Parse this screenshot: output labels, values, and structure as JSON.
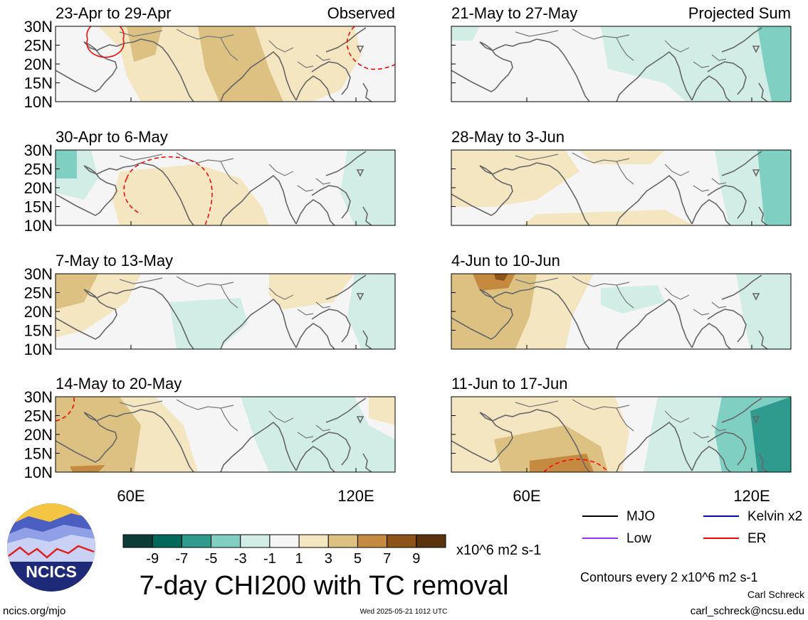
{
  "chart_data": {
    "type": "map",
    "panels": [
      {
        "period": "23-Apr to 29-Apr",
        "tag": "Observed"
      },
      {
        "period": "21-May to 27-May",
        "tag": "Projected Sum"
      },
      {
        "period": "30-Apr to 6-May",
        "tag": ""
      },
      {
        "period": "28-May to 3-Jun",
        "tag": ""
      },
      {
        "period": "7-May to 13-May",
        "tag": ""
      },
      {
        "period": "4-Jun to 10-Jun",
        "tag": ""
      },
      {
        "period": "14-May to 20-May",
        "tag": ""
      },
      {
        "period": "11-Jun to 17-Jun",
        "tag": ""
      }
    ],
    "lat_ticks": [
      "30N",
      "25N",
      "20N",
      "15N",
      "10N"
    ],
    "lon_ticks": [
      "60E",
      "120E"
    ],
    "colorbar": {
      "labels": [
        "-9",
        "-7",
        "-5",
        "-3",
        "-1",
        "1",
        "3",
        "5",
        "7",
        "9"
      ],
      "colors": [
        "#0b3d36",
        "#00695c",
        "#2f9b8e",
        "#7fcfc2",
        "#d2ece6",
        "#f5f5f5",
        "#f5e6c2",
        "#dcc183",
        "#c48a3f",
        "#8e5318",
        "#5a320c"
      ],
      "units": "x10^6 m2 s-1"
    },
    "title": "7-day CHI200 with TC removal",
    "legend": [
      {
        "label": "MJO",
        "color": "#000000"
      },
      {
        "label": "Kelvin x2",
        "color": "#0000ff"
      },
      {
        "label": "Low",
        "color": "#9b30ff"
      },
      {
        "label": "ER",
        "color": "#ff0000"
      }
    ],
    "contour_note": "Contours every 2 x10^6 m2 s-1",
    "author": "Carl Schreck",
    "email": "carl_schreck@ncsu.edu",
    "website": "ncics.org/mjo",
    "timestamp": "Wed 2025-05-21 1012 UTC",
    "logo_text": "NCICS"
  }
}
